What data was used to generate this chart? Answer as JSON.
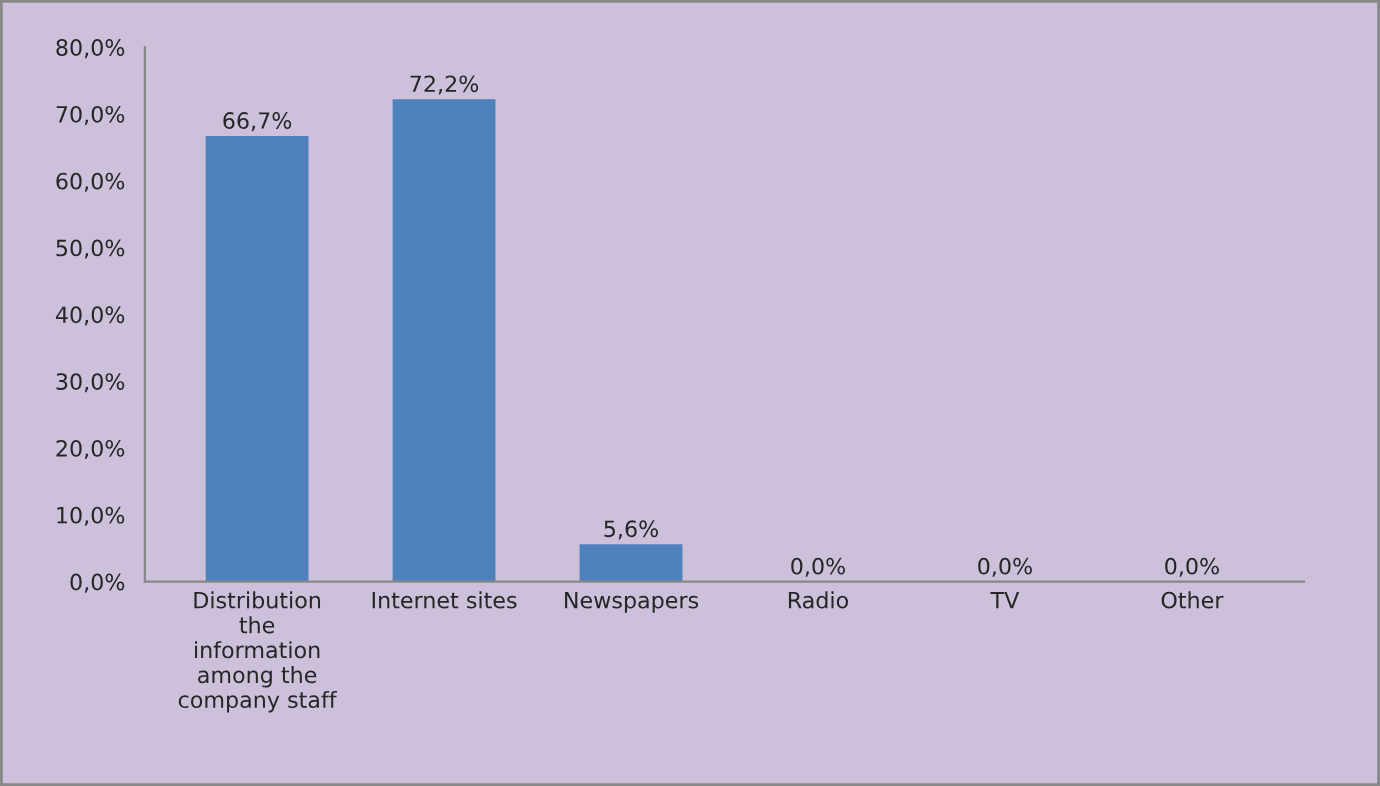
{
  "chart_data": {
    "type": "bar",
    "categories": [
      "Distribution\nthe\ninformation\namong the\ncompany staff",
      "Internet sites",
      "Newspapers",
      "Radio",
      "TV",
      "Other"
    ],
    "values": [
      66.7,
      72.2,
      5.6,
      0,
      0,
      0
    ],
    "value_labels": [
      "66,7%",
      "72,2%",
      "5,6%",
      "0,0%",
      "0,0%",
      "0,0%"
    ],
    "color": "#4f81bd",
    "ylim": [
      0,
      80
    ],
    "yticks": [
      {
        "value": 0,
        "label": "0,0%"
      },
      {
        "value": 10,
        "label": "10,0%"
      },
      {
        "value": 20,
        "label": "20,0%"
      },
      {
        "value": 30,
        "label": "30,0%"
      },
      {
        "value": 40,
        "label": "40,0%"
      },
      {
        "value": 50,
        "label": "50,0%"
      },
      {
        "value": 60,
        "label": "60,0%"
      },
      {
        "value": 70,
        "label": "70,0%"
      },
      {
        "value": 80,
        "label": "80,0%"
      }
    ],
    "grid": false,
    "legend": false
  }
}
